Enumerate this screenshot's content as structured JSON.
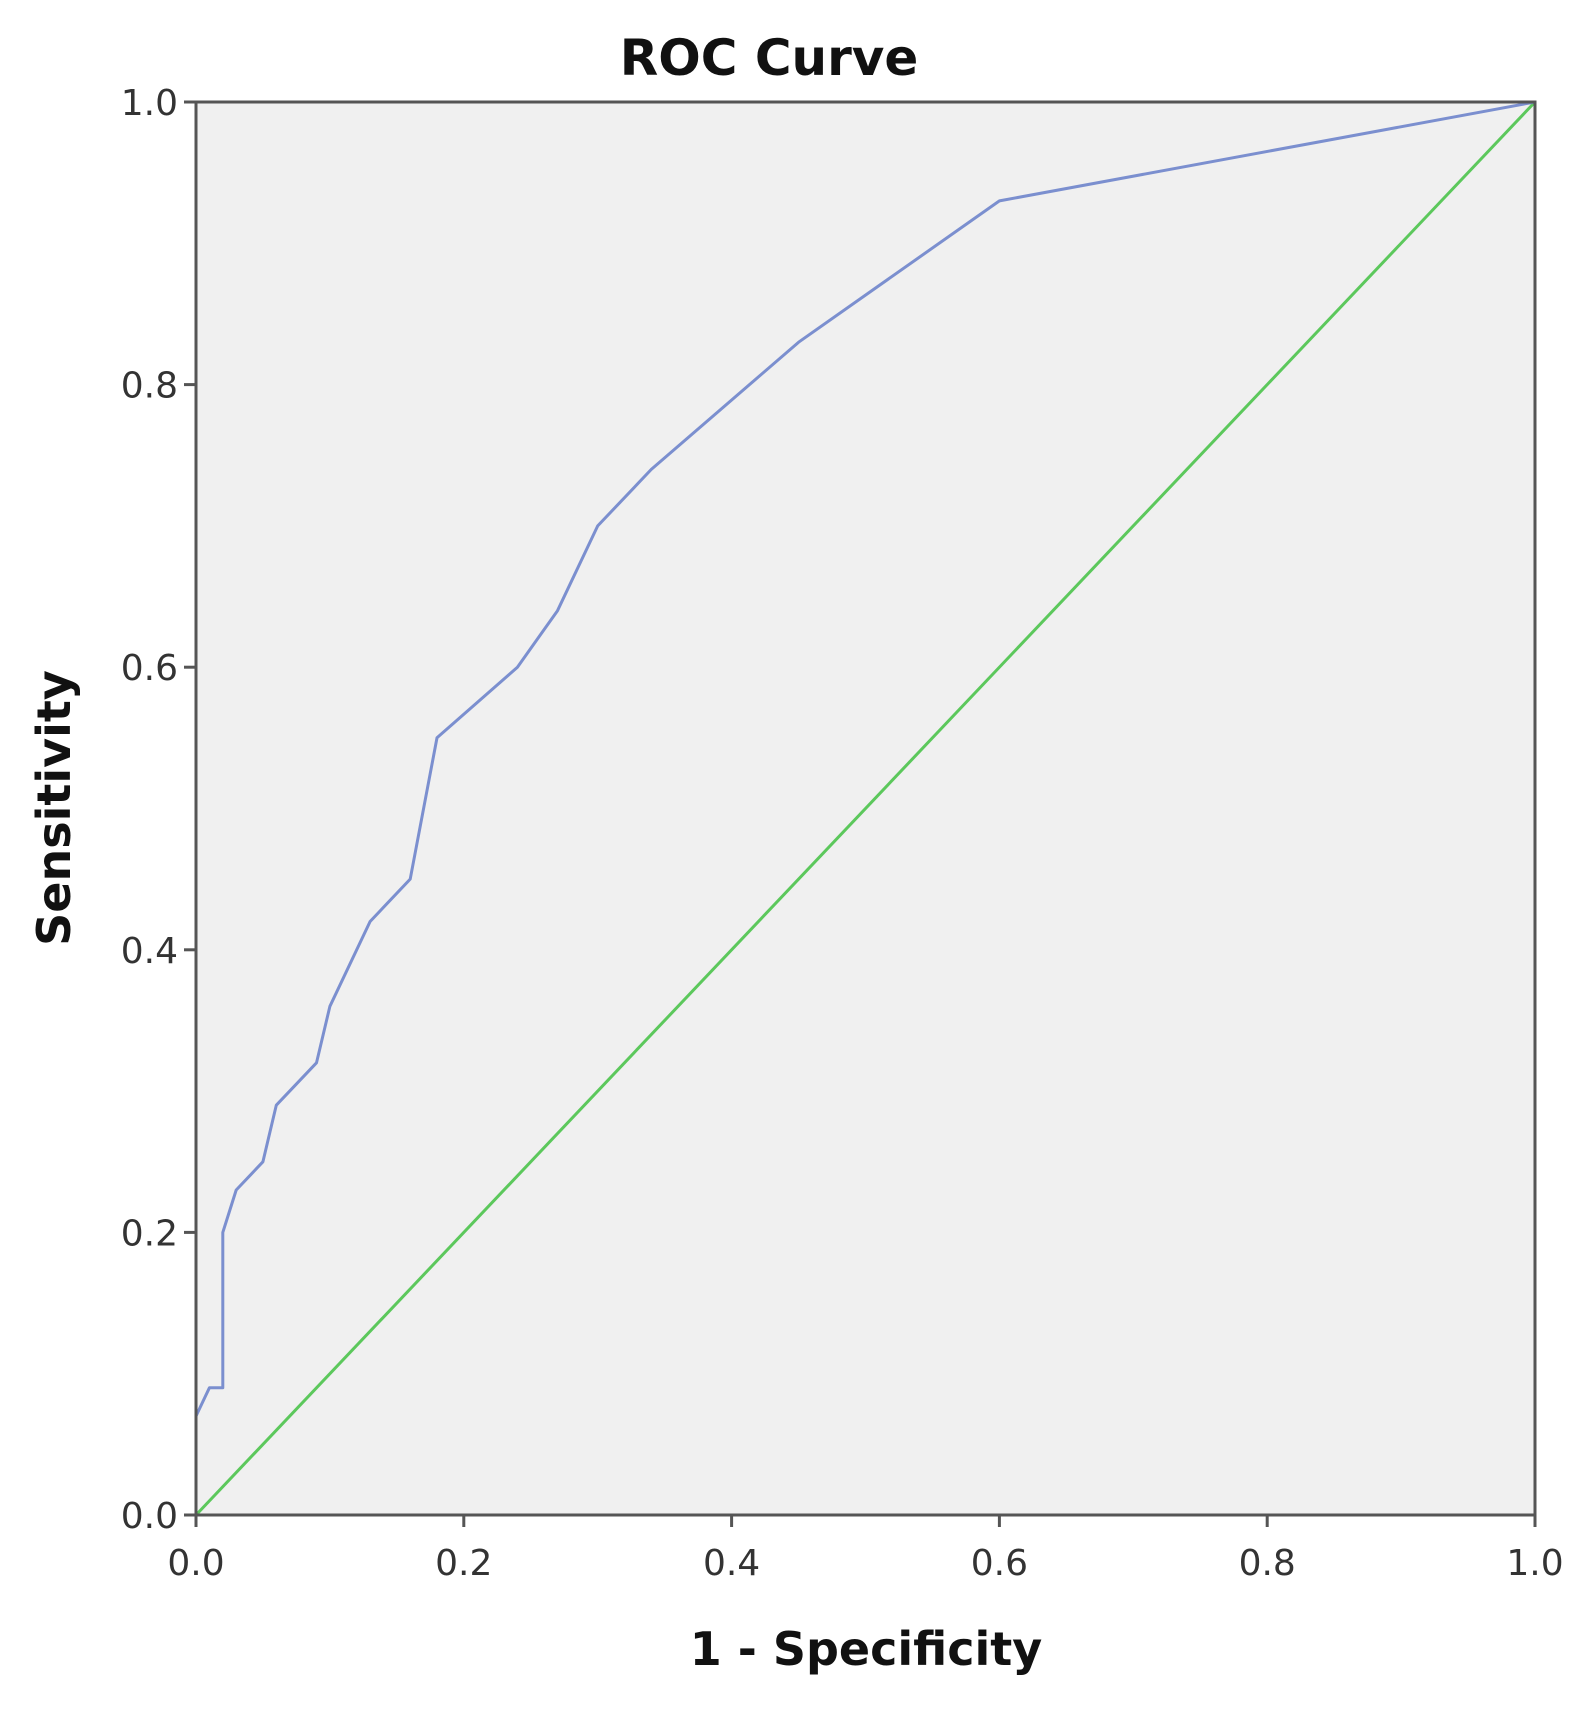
{
  "chart_data": {
    "type": "line",
    "title": "ROC Curve",
    "xlabel": "1 - Specificity",
    "ylabel": "Sensitivity",
    "xlim": [
      0,
      1
    ],
    "ylim": [
      0,
      1
    ],
    "x_ticks": [
      "0.0",
      "0.2",
      "0.4",
      "0.6",
      "0.8",
      "1.0"
    ],
    "y_ticks": [
      "0.0",
      "0.2",
      "0.4",
      "0.6",
      "0.8",
      "1.0"
    ],
    "grid": false,
    "background_color": "#f0f0f0",
    "series": [
      {
        "color": "#7b8fcf",
        "x": [
          0.0,
          0.01,
          0.02,
          0.02,
          0.03,
          0.05,
          0.06,
          0.09,
          0.1,
          0.13,
          0.16,
          0.18,
          0.24,
          0.27,
          0.3,
          0.34,
          0.45,
          0.6,
          1.0
        ],
        "y": [
          0.07,
          0.09,
          0.09,
          0.2,
          0.23,
          0.25,
          0.29,
          0.32,
          0.36,
          0.42,
          0.45,
          0.55,
          0.6,
          0.64,
          0.7,
          0.74,
          0.83,
          0.93,
          1.0
        ]
      },
      {
        "color": "#5cc85c",
        "x": [
          0.0,
          1.0
        ],
        "y": [
          0.0,
          1.0
        ]
      }
    ]
  }
}
